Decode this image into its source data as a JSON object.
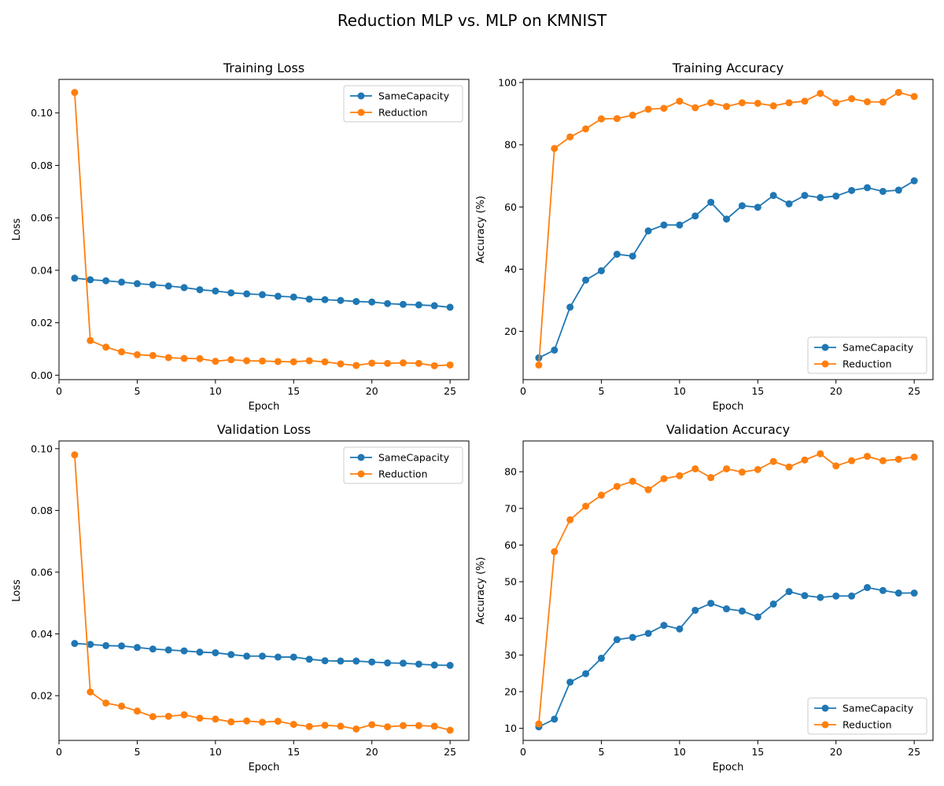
{
  "figure": {
    "title": "Reduction MLP vs. MLP on KMNIST",
    "colors": {
      "SameCapacity": "#1f77b4",
      "Reduction": "#ff7f0e"
    }
  },
  "chart_data": [
    {
      "type": "line",
      "title": "Training Loss",
      "xlabel": "Epoch",
      "ylabel": "Loss",
      "xlim": [
        0,
        26.2
      ],
      "ylim": [
        -0.0017,
        0.1128
      ],
      "xticks": [
        0,
        5,
        10,
        15,
        20,
        25
      ],
      "xtick_labels": [
        "0",
        "5",
        "10",
        "15",
        "20",
        "25"
      ],
      "yticks": [
        0.0,
        0.02,
        0.04,
        0.06,
        0.08,
        0.1
      ],
      "ytick_labels": [
        "0.00",
        "0.02",
        "0.04",
        "0.06",
        "0.08",
        "0.10"
      ],
      "legend_position": "upper-right",
      "x": [
        1,
        2,
        3,
        4,
        5,
        6,
        7,
        8,
        9,
        10,
        11,
        12,
        13,
        14,
        15,
        16,
        17,
        18,
        19,
        20,
        21,
        22,
        23,
        24,
        25
      ],
      "series": [
        {
          "name": "SameCapacity",
          "values": [
            0.037,
            0.0364,
            0.036,
            0.0355,
            0.0349,
            0.0345,
            0.034,
            0.0334,
            0.0326,
            0.0321,
            0.0314,
            0.031,
            0.0307,
            0.0301,
            0.0298,
            0.029,
            0.0288,
            0.0285,
            0.0281,
            0.0279,
            0.0273,
            0.027,
            0.0268,
            0.0265,
            0.0259
          ]
        },
        {
          "name": "Reduction",
          "values": [
            0.1078,
            0.0132,
            0.0107,
            0.0089,
            0.0078,
            0.0075,
            0.0067,
            0.0064,
            0.0063,
            0.0053,
            0.0059,
            0.0055,
            0.0054,
            0.0052,
            0.0051,
            0.0055,
            0.0051,
            0.0043,
            0.0037,
            0.0046,
            0.0045,
            0.0047,
            0.0045,
            0.0036,
            0.0039
          ]
        }
      ]
    },
    {
      "type": "line",
      "title": "Training Accuracy",
      "xlabel": "Epoch",
      "ylabel": "Accuracy (%)",
      "xlim": [
        0,
        26.2
      ],
      "ylim": [
        4.5,
        101
      ],
      "xticks": [
        0,
        5,
        10,
        15,
        20,
        25
      ],
      "xtick_labels": [
        "0",
        "5",
        "10",
        "15",
        "20",
        "25"
      ],
      "yticks": [
        20,
        40,
        60,
        80,
        100
      ],
      "ytick_labels": [
        "20",
        "40",
        "60",
        "80",
        "100"
      ],
      "legend_position": "lower-right",
      "x": [
        1,
        2,
        3,
        4,
        5,
        6,
        7,
        8,
        9,
        10,
        11,
        12,
        13,
        14,
        15,
        16,
        17,
        18,
        19,
        20,
        21,
        22,
        23,
        24,
        25
      ],
      "series": [
        {
          "name": "SameCapacity",
          "values": [
            11.5,
            14.0,
            27.8,
            36.5,
            39.5,
            44.8,
            44.2,
            52.3,
            54.2,
            54.2,
            57.1,
            61.5,
            56.1,
            60.4,
            59.9,
            63.7,
            61.0,
            63.7,
            63.0,
            63.5,
            65.3,
            66.2,
            65.0,
            65.4,
            68.4
          ]
        },
        {
          "name": "Reduction",
          "values": [
            9.2,
            78.8,
            82.5,
            85.1,
            88.3,
            88.4,
            89.5,
            91.4,
            91.7,
            94.0,
            91.9,
            93.5,
            92.3,
            93.5,
            93.3,
            92.5,
            93.5,
            94.0,
            96.5,
            93.5,
            94.8,
            93.8,
            93.7,
            96.8,
            95.5
          ]
        }
      ]
    },
    {
      "type": "line",
      "title": "Validation Loss",
      "xlabel": "Epoch",
      "ylabel": "Loss",
      "xlim": [
        0,
        26.2
      ],
      "ylim": [
        0.0055,
        0.1025
      ],
      "xticks": [
        0,
        5,
        10,
        15,
        20,
        25
      ],
      "xtick_labels": [
        "0",
        "5",
        "10",
        "15",
        "20",
        "25"
      ],
      "yticks": [
        0.02,
        0.04,
        0.06,
        0.08,
        0.1
      ],
      "ytick_labels": [
        "0.02",
        "0.04",
        "0.06",
        "0.08",
        "0.10"
      ],
      "legend_position": "upper-right",
      "x": [
        1,
        2,
        3,
        4,
        5,
        6,
        7,
        8,
        9,
        10,
        11,
        12,
        13,
        14,
        15,
        16,
        17,
        18,
        19,
        20,
        21,
        22,
        23,
        24,
        25
      ],
      "series": [
        {
          "name": "SameCapacity",
          "values": [
            0.0369,
            0.0366,
            0.0362,
            0.0361,
            0.0356,
            0.0351,
            0.0348,
            0.0345,
            0.0341,
            0.0339,
            0.0333,
            0.0328,
            0.0328,
            0.0325,
            0.0325,
            0.0318,
            0.0313,
            0.0312,
            0.0312,
            0.0309,
            0.0306,
            0.0305,
            0.0302,
            0.0299,
            0.0298
          ]
        },
        {
          "name": "Reduction",
          "values": [
            0.098,
            0.0212,
            0.0176,
            0.0166,
            0.015,
            0.0132,
            0.0133,
            0.0138,
            0.0127,
            0.0124,
            0.0115,
            0.0118,
            0.0114,
            0.0117,
            0.0107,
            0.01,
            0.0104,
            0.0101,
            0.0092,
            0.0106,
            0.0099,
            0.0103,
            0.0103,
            0.0101,
            0.0088
          ]
        }
      ]
    },
    {
      "type": "line",
      "title": "Validation Accuracy",
      "xlabel": "Epoch",
      "ylabel": "Accuracy (%)",
      "xlim": [
        0,
        26.2
      ],
      "ylim": [
        6.7,
        88.4
      ],
      "xticks": [
        0,
        5,
        10,
        15,
        20,
        25
      ],
      "xtick_labels": [
        "0",
        "5",
        "10",
        "15",
        "20",
        "25"
      ],
      "yticks": [
        10,
        20,
        30,
        40,
        50,
        60,
        70,
        80
      ],
      "ytick_labels": [
        "10",
        "20",
        "30",
        "40",
        "50",
        "60",
        "70",
        "80"
      ],
      "legend_position": "lower-right",
      "x": [
        1,
        2,
        3,
        4,
        5,
        6,
        7,
        8,
        9,
        10,
        11,
        12,
        13,
        14,
        15,
        16,
        17,
        18,
        19,
        20,
        21,
        22,
        23,
        24,
        25
      ],
      "series": [
        {
          "name": "SameCapacity",
          "values": [
            10.4,
            12.5,
            22.6,
            24.9,
            29.1,
            34.2,
            34.8,
            35.9,
            38.1,
            37.1,
            42.2,
            44.1,
            42.6,
            42.0,
            40.4,
            43.9,
            47.3,
            46.2,
            45.7,
            46.1,
            46.1,
            48.4,
            47.6,
            46.9,
            46.9
          ]
        },
        {
          "name": "Reduction",
          "values": [
            11.2,
            58.2,
            66.9,
            70.6,
            73.6,
            76.0,
            77.4,
            75.1,
            78.1,
            78.9,
            80.8,
            78.4,
            80.8,
            79.9,
            80.6,
            82.8,
            81.3,
            83.2,
            84.9,
            81.6,
            83.0,
            84.2,
            83.0,
            83.4,
            84.0
          ]
        }
      ]
    }
  ]
}
